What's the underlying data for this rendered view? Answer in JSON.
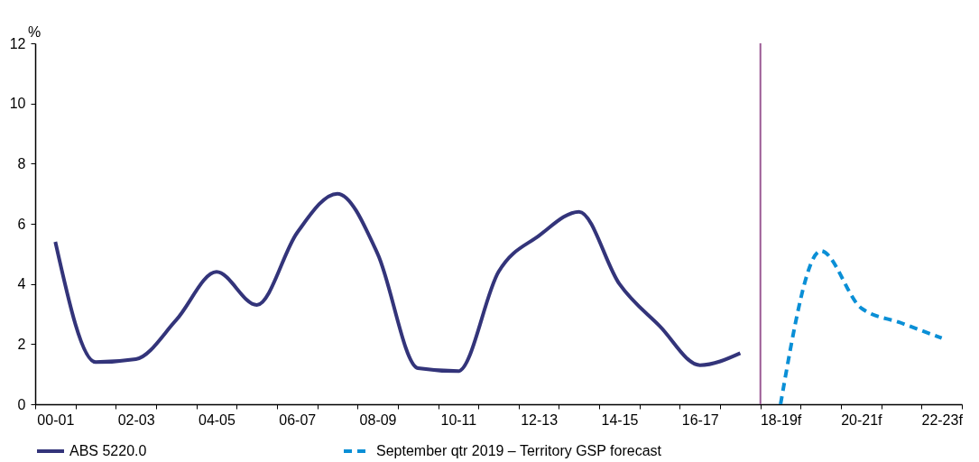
{
  "chart_data": {
    "type": "line",
    "ylabel": "%",
    "categories": [
      "00-01",
      null,
      "02-03",
      null,
      "04-05",
      null,
      "06-07",
      null,
      "08-09",
      null,
      "10-11",
      null,
      "12-13",
      null,
      "14-15",
      null,
      "16-17",
      null,
      "18-19f",
      null,
      "20-21f",
      null,
      "22-23f"
    ],
    "series": [
      {
        "name": "ABS 5220.0",
        "color": "#33347a",
        "line_style": "solid",
        "values": [
          5.4,
          1.4,
          1.5,
          2.8,
          4.4,
          3.3,
          5.7,
          7.0,
          5.0,
          1.2,
          1.1,
          4.4,
          5.6,
          6.4,
          4.0,
          2.6,
          1.3,
          1.7,
          null,
          null,
          null,
          null,
          null
        ]
      },
      {
        "name": "September qtr 2019 – Territory GSP forecast",
        "color": "#0a8fd6",
        "line_style": "dashed",
        "values": [
          null,
          null,
          null,
          null,
          null,
          null,
          null,
          null,
          null,
          null,
          null,
          null,
          null,
          null,
          null,
          null,
          null,
          null,
          0,
          5.1,
          3.2,
          2.7,
          2.2
        ]
      }
    ],
    "ylim": [
      0,
      12
    ],
    "yticks": [
      0,
      2,
      4,
      6,
      8,
      10,
      12
    ],
    "grid": false,
    "legend": "bottom",
    "ref_lines": [
      {
        "axis": "x",
        "value": "18-19f",
        "color": "#9b5a94"
      }
    ]
  }
}
